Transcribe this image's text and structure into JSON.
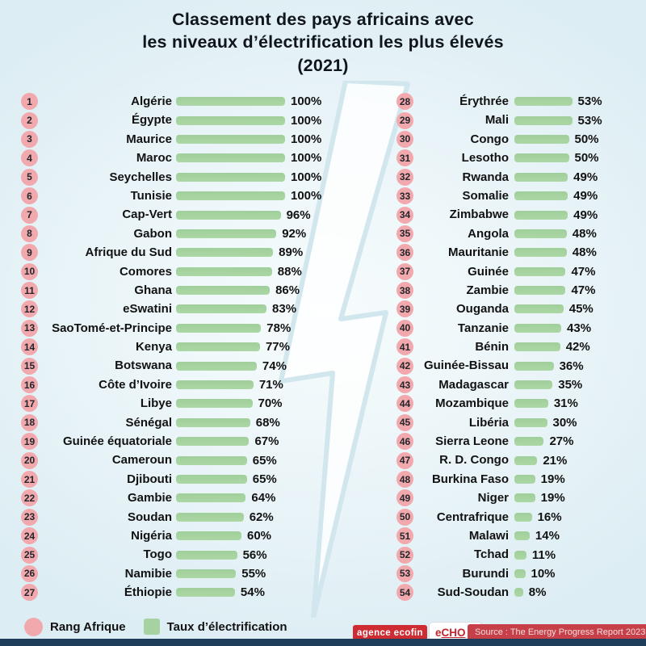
{
  "title": {
    "line1": "Classement des pays africains avec",
    "line2": "les niveaux d’électrification les plus élevés",
    "line3": "(2021)"
  },
  "legend": {
    "rank_label": "Rang Afrique",
    "bar_label": "Taux d’électrification",
    "rank_color": "#f1a9ae",
    "bar_color": "#a5d2a0"
  },
  "footer": {
    "agence_logo": "agence ecofin",
    "echo_e": "e",
    "echo_rest": "CHO",
    "source": "Source : The Energy Progress Report 2023",
    "bottom_bar_color": "#1d3d5a",
    "logo_red": "#cf2b33"
  },
  "chart_data": {
    "type": "bar",
    "title": "Classement des pays africains avec les niveaux d’électrification les plus élevés (2021)",
    "xlabel": "Taux d’électrification",
    "ylabel": "Rang Afrique",
    "unit": "%",
    "xlim": [
      0,
      100
    ],
    "entries": [
      {
        "rank": 1,
        "country": "Algérie",
        "value": 100
      },
      {
        "rank": 2,
        "country": "Égypte",
        "value": 100
      },
      {
        "rank": 3,
        "country": "Maurice",
        "value": 100
      },
      {
        "rank": 4,
        "country": "Maroc",
        "value": 100
      },
      {
        "rank": 5,
        "country": "Seychelles",
        "value": 100
      },
      {
        "rank": 6,
        "country": "Tunisie",
        "value": 100
      },
      {
        "rank": 7,
        "country": "Cap-Vert",
        "value": 96
      },
      {
        "rank": 8,
        "country": "Gabon",
        "value": 92
      },
      {
        "rank": 9,
        "country": "Afrique du Sud",
        "value": 89
      },
      {
        "rank": 10,
        "country": "Comores",
        "value": 88
      },
      {
        "rank": 11,
        "country": "Ghana",
        "value": 86
      },
      {
        "rank": 12,
        "country": "eSwatini",
        "value": 83
      },
      {
        "rank": 13,
        "country": "SaoTomé-et-Principe",
        "value": 78
      },
      {
        "rank": 14,
        "country": "Kenya",
        "value": 77
      },
      {
        "rank": 15,
        "country": "Botswana",
        "value": 74
      },
      {
        "rank": 16,
        "country": "Côte d’Ivoire",
        "value": 71
      },
      {
        "rank": 17,
        "country": "Libye",
        "value": 70
      },
      {
        "rank": 18,
        "country": "Sénégal",
        "value": 68
      },
      {
        "rank": 19,
        "country": "Guinée équatoriale",
        "value": 67
      },
      {
        "rank": 20,
        "country": "Cameroun",
        "value": 65
      },
      {
        "rank": 21,
        "country": "Djibouti",
        "value": 65
      },
      {
        "rank": 22,
        "country": "Gambie",
        "value": 64
      },
      {
        "rank": 23,
        "country": "Soudan",
        "value": 62
      },
      {
        "rank": 24,
        "country": "Nigéria",
        "value": 60
      },
      {
        "rank": 25,
        "country": "Togo",
        "value": 56
      },
      {
        "rank": 26,
        "country": "Namibie",
        "value": 55
      },
      {
        "rank": 27,
        "country": "Éthiopie",
        "value": 54
      },
      {
        "rank": 28,
        "country": "Érythrée",
        "value": 53
      },
      {
        "rank": 29,
        "country": "Mali",
        "value": 53
      },
      {
        "rank": 30,
        "country": "Congo",
        "value": 50
      },
      {
        "rank": 31,
        "country": "Lesotho",
        "value": 50
      },
      {
        "rank": 32,
        "country": "Rwanda",
        "value": 49
      },
      {
        "rank": 33,
        "country": "Somalie",
        "value": 49
      },
      {
        "rank": 34,
        "country": "Zimbabwe",
        "value": 49
      },
      {
        "rank": 35,
        "country": "Angola",
        "value": 48
      },
      {
        "rank": 36,
        "country": "Mauritanie",
        "value": 48
      },
      {
        "rank": 37,
        "country": "Guinée",
        "value": 47
      },
      {
        "rank": 38,
        "country": "Zambie",
        "value": 47
      },
      {
        "rank": 39,
        "country": "Ouganda",
        "value": 45
      },
      {
        "rank": 40,
        "country": "Tanzanie",
        "value": 43
      },
      {
        "rank": 41,
        "country": "Bénin",
        "value": 42
      },
      {
        "rank": 42,
        "country": "Guinée-Bissau",
        "value": 36
      },
      {
        "rank": 43,
        "country": "Madagascar",
        "value": 35
      },
      {
        "rank": 44,
        "country": "Mozambique",
        "value": 31
      },
      {
        "rank": 45,
        "country": "Libéria",
        "value": 30
      },
      {
        "rank": 46,
        "country": "Sierra Leone",
        "value": 27
      },
      {
        "rank": 47,
        "country": "R. D. Congo",
        "value": 21
      },
      {
        "rank": 48,
        "country": "Burkina Faso",
        "value": 19
      },
      {
        "rank": 49,
        "country": "Niger",
        "value": 19
      },
      {
        "rank": 50,
        "country": "Centrafrique",
        "value": 16
      },
      {
        "rank": 51,
        "country": "Malawi",
        "value": 14
      },
      {
        "rank": 52,
        "country": "Tchad",
        "value": 11
      },
      {
        "rank": 53,
        "country": "Burundi",
        "value": 10
      },
      {
        "rank": 54,
        "country": "Sud-Soudan",
        "value": 8
      }
    ]
  }
}
